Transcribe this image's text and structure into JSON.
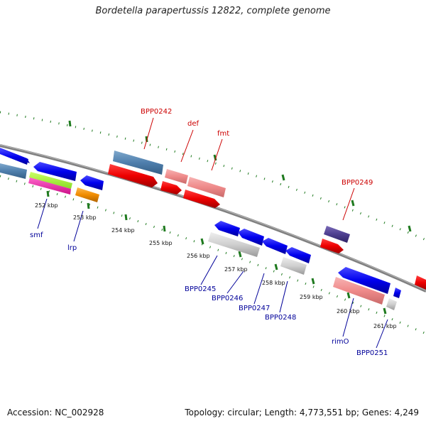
{
  "title": "Bordetella parapertussis 12822, complete genome",
  "footer": {
    "accession": "Accession: NC_002928",
    "topology": "Topology: circular; Length: 4,773,551 bp; Genes: 4,249"
  },
  "colors": {
    "forward_label": "#cc0000",
    "reverse_label": "#000099",
    "backbone": "#808080",
    "tick": "#1f7a1f"
  },
  "kbp_labels": [
    "252 kbp",
    "253 kbp",
    "254 kbp",
    "255 kbp",
    "256 kbp",
    "257 kbp",
    "258 kbp",
    "259 kbp",
    "260 kbp",
    "261 kbp"
  ],
  "forward_labels": [
    "BPP0242",
    "def",
    "fmt",
    "BPP0249"
  ],
  "reverse_labels": [
    "smf",
    "lrp",
    "BPP0245",
    "BPP0246",
    "BPP0247",
    "BPP0248",
    "rimO",
    "BPP0251"
  ]
}
